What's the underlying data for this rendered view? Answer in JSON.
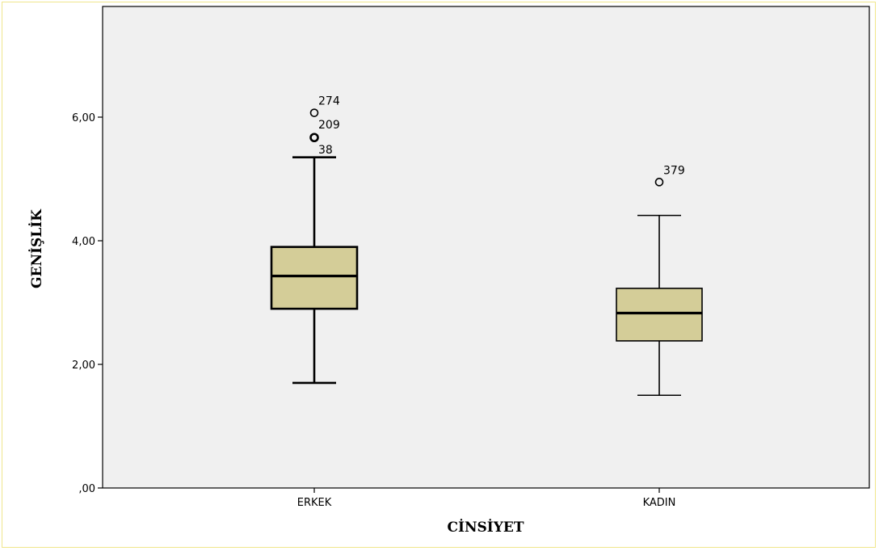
{
  "chart_data": {
    "type": "boxplot",
    "xlabel": "CİNSİYET",
    "ylabel": "GENİŞLİK",
    "ylim": [
      0,
      7.6
    ],
    "yticks": [
      0,
      2,
      4,
      6
    ],
    "ytick_labels": [
      ",00",
      "2,00",
      "4,00",
      "6,00"
    ],
    "grid": false,
    "categories": [
      "ERKEK",
      "KADIN"
    ],
    "boxes": [
      {
        "category": "ERKEK",
        "whisker_low": 1.7,
        "q1": 2.9,
        "median": 3.43,
        "q3": 3.9,
        "whisker_high": 5.35,
        "outliers": [
          {
            "value": 6.07,
            "label": "274"
          },
          {
            "value": 5.67,
            "label": "209"
          },
          {
            "value": 5.67,
            "label": "38"
          }
        ]
      },
      {
        "category": "KADIN",
        "whisker_low": 1.5,
        "q1": 2.38,
        "median": 2.83,
        "q3": 3.23,
        "whisker_high": 4.41,
        "outliers": [
          {
            "value": 4.95,
            "label": "379"
          }
        ]
      }
    ],
    "colors": {
      "box_fill": "#d4cd98",
      "plot_background": "#f0f0f0",
      "frame_border": "#f0e68c"
    }
  }
}
